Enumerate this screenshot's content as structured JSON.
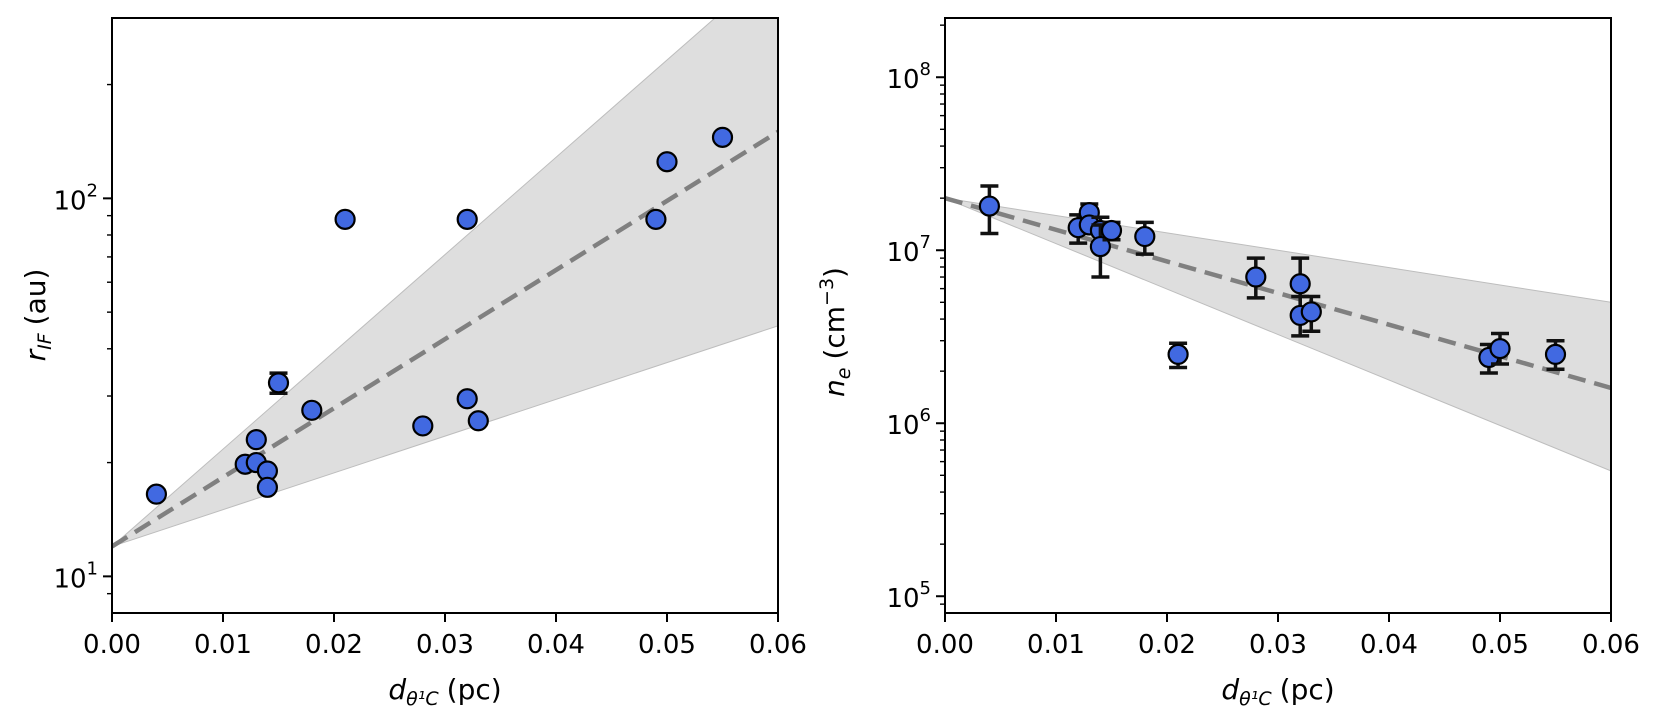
{
  "chart_data": [
    {
      "id": "left",
      "type": "scatter",
      "yscale": "log",
      "xlim": [
        0.0,
        0.06
      ],
      "ylim": [
        8.0,
        300.0
      ],
      "xticks": [
        0.0,
        0.01,
        0.02,
        0.03,
        0.04,
        0.05,
        0.06
      ],
      "xtick_labels": [
        "0.00",
        "0.01",
        "0.02",
        "0.03",
        "0.04",
        "0.05",
        "0.06"
      ],
      "yticks": [
        10,
        100
      ],
      "ytick_labels": [
        {
          "base": "10",
          "exp": "1"
        },
        {
          "base": "10",
          "exp": "2"
        }
      ],
      "xlabel": {
        "d": "d",
        "sub": "θ¹C",
        "unit": "(pc)"
      },
      "ylabel": {
        "r": "r",
        "sub": "IF",
        "unit": "(au)"
      },
      "fit": {
        "x": [
          0.0,
          0.06
        ],
        "y": [
          12.0,
          150.0
        ],
        "style": "dashed",
        "color": "#808080"
      },
      "band": {
        "x": [
          0.0,
          0.06
        ],
        "upper": [
          12.0,
          420.0
        ],
        "lower": [
          12.0,
          46.0
        ],
        "color": "#dedede"
      },
      "marker_color": "#4169e1",
      "points": [
        {
          "x": 0.004,
          "y": 16.5
        },
        {
          "x": 0.012,
          "y": 19.8
        },
        {
          "x": 0.013,
          "y": 20.0
        },
        {
          "x": 0.013,
          "y": 23.0
        },
        {
          "x": 0.014,
          "y": 19.0
        },
        {
          "x": 0.014,
          "y": 17.2
        },
        {
          "x": 0.015,
          "y": 32.5,
          "err": [
            30.5,
            34.5
          ]
        },
        {
          "x": 0.018,
          "y": 27.5
        },
        {
          "x": 0.021,
          "y": 88.0
        },
        {
          "x": 0.028,
          "y": 25.0
        },
        {
          "x": 0.032,
          "y": 88.0
        },
        {
          "x": 0.032,
          "y": 29.5
        },
        {
          "x": 0.033,
          "y": 25.8
        },
        {
          "x": 0.049,
          "y": 88.0
        },
        {
          "x": 0.05,
          "y": 125.0
        },
        {
          "x": 0.055,
          "y": 145.0
        }
      ]
    },
    {
      "id": "right",
      "type": "scatter",
      "yscale": "log",
      "xlim": [
        0.0,
        0.06
      ],
      "ylim": [
        80000.0,
        220000000.0
      ],
      "xticks": [
        0.0,
        0.01,
        0.02,
        0.03,
        0.04,
        0.05,
        0.06
      ],
      "xtick_labels": [
        "0.00",
        "0.01",
        "0.02",
        "0.03",
        "0.04",
        "0.05",
        "0.06"
      ],
      "yticks": [
        100000,
        1000000,
        10000000,
        100000000
      ],
      "ytick_labels": [
        {
          "base": "10",
          "exp": "5"
        },
        {
          "base": "10",
          "exp": "6"
        },
        {
          "base": "10",
          "exp": "7"
        },
        {
          "base": "10",
          "exp": "8"
        }
      ],
      "xlabel": {
        "d": "d",
        "sub": "θ¹C",
        "unit": "(pc)"
      },
      "ylabel": {
        "n": "n",
        "sub": "e",
        "unit_open": "(cm",
        "unit_exp": "−3",
        "unit_close": ")"
      },
      "fit": {
        "x": [
          0.0,
          0.06
        ],
        "y": [
          20000000.0,
          1600000.0
        ],
        "style": "dashed",
        "color": "#808080"
      },
      "band": {
        "x": [
          0.0,
          0.06
        ],
        "upper": [
          20000000.0,
          5000000.0
        ],
        "lower": [
          20000000.0,
          530000.0
        ],
        "color": "#dedede"
      },
      "marker_color": "#4169e1",
      "points": [
        {
          "x": 0.004,
          "y": 18000000.0,
          "err": [
            12500000.0,
            23500000.0
          ]
        },
        {
          "x": 0.012,
          "y": 13500000.0,
          "err": [
            11000000.0,
            16000000.0
          ]
        },
        {
          "x": 0.013,
          "y": 16500000.0,
          "err": [
            14500000.0,
            18500000.0
          ]
        },
        {
          "x": 0.013,
          "y": 14000000.0
        },
        {
          "x": 0.014,
          "y": 13000000.0,
          "err": [
            11000000.0,
            15500000.0
          ]
        },
        {
          "x": 0.014,
          "y": 10500000.0,
          "err": [
            7000000.0,
            14000000.0
          ]
        },
        {
          "x": 0.015,
          "y": 13000000.0,
          "err": [
            11500000.0,
            14500000.0
          ]
        },
        {
          "x": 0.018,
          "y": 12000000.0,
          "err": [
            9500000.0,
            14500000.0
          ]
        },
        {
          "x": 0.021,
          "y": 2500000.0,
          "err": [
            2100000.0,
            2900000.0
          ]
        },
        {
          "x": 0.028,
          "y": 7000000.0,
          "err": [
            5300000.0,
            9000000.0
          ]
        },
        {
          "x": 0.032,
          "y": 6400000.0,
          "err": [
            4300000.0,
            9000000.0
          ]
        },
        {
          "x": 0.032,
          "y": 4200000.0,
          "err": [
            3200000.0,
            5400000.0
          ]
        },
        {
          "x": 0.033,
          "y": 4400000.0,
          "err": [
            3400000.0,
            5400000.0
          ]
        },
        {
          "x": 0.049,
          "y": 2400000.0,
          "err": [
            1950000.0,
            2850000.0
          ]
        },
        {
          "x": 0.05,
          "y": 2700000.0,
          "err": [
            2200000.0,
            3300000.0
          ]
        },
        {
          "x": 0.055,
          "y": 2500000.0,
          "err": [
            2050000.0,
            3000000.0
          ]
        }
      ]
    }
  ]
}
